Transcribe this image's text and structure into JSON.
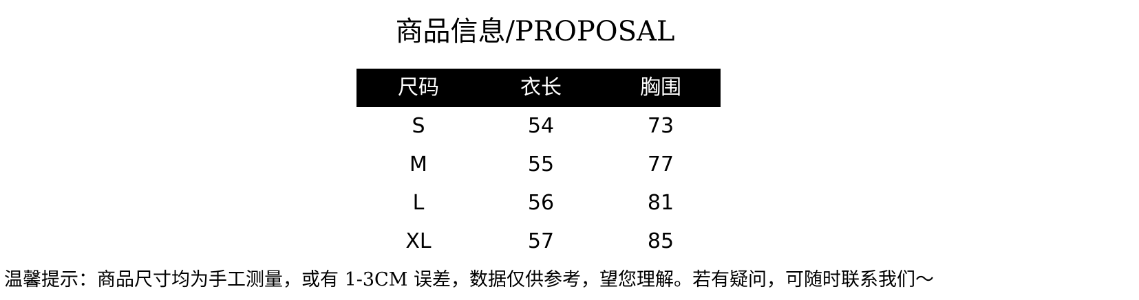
{
  "title": "商品信息/PROPOSAL",
  "table": {
    "headers": [
      "尺码",
      "衣长",
      "胸围"
    ],
    "rows": [
      [
        "S",
        "54",
        "73"
      ],
      [
        "M",
        "55",
        "77"
      ],
      [
        "L",
        "56",
        "81"
      ],
      [
        "XL",
        "57",
        "85"
      ]
    ]
  },
  "note": "温馨提示：商品尺寸均为手工测量，或有 1-3CM 误差，数据仅供参考，望您理解。若有疑问，可随时联系我们～"
}
